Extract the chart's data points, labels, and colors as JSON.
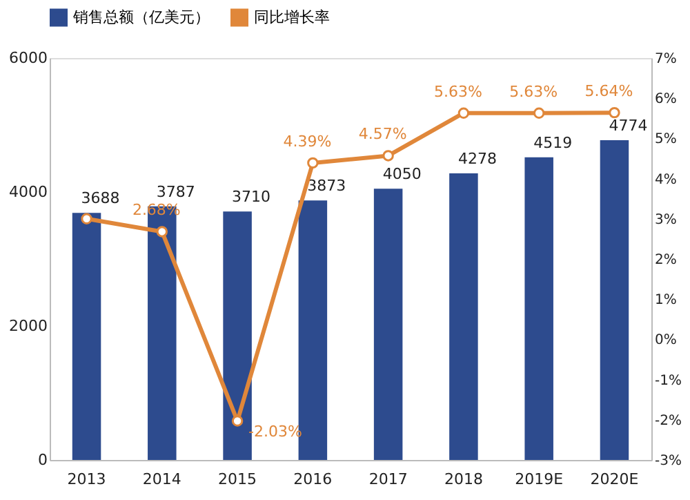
{
  "chart_data": {
    "type": "bar",
    "categories": [
      "2013",
      "2014",
      "2015",
      "2016",
      "2017",
      "2018",
      "2019E",
      "2020E"
    ],
    "series": [
      {
        "name": "销售总额（亿美元）",
        "type": "bar",
        "color": "#2d4b8e",
        "values": [
          3688,
          3787,
          3710,
          3873,
          4050,
          4278,
          4519,
          4774
        ],
        "value_labels": [
          "3688",
          "3787",
          "3710",
          "3873",
          "4050",
          "4278",
          "4519",
          "4774"
        ]
      },
      {
        "name": "同比增长率",
        "type": "line",
        "axis": "y2",
        "color": "#e0873a",
        "values": [
          3.0,
          2.68,
          -2.03,
          4.39,
          4.57,
          5.63,
          5.63,
          5.64
        ],
        "value_labels": [
          null,
          "2.68%",
          "-2.03%",
          "4.39%",
          "4.57%",
          "5.63%",
          "5.63%",
          "5.64%"
        ]
      }
    ],
    "ylim": [
      0,
      6000
    ],
    "yticks": [
      0,
      2000,
      4000,
      6000
    ],
    "y2lim": [
      -3,
      7
    ],
    "y2ticks": [
      {
        "value": -3,
        "label": "-3%"
      },
      {
        "value": -2,
        "label": "-2%"
      },
      {
        "value": -1,
        "label": "-1%"
      },
      {
        "value": 0,
        "label": "0%"
      },
      {
        "value": 1,
        "label": "1%"
      },
      {
        "value": 2,
        "label": "2%"
      },
      {
        "value": 3,
        "label": "3%"
      },
      {
        "value": 4,
        "label": "4%"
      },
      {
        "value": 5,
        "label": "5%"
      },
      {
        "value": 6,
        "label": "6%"
      },
      {
        "value": 7,
        "label": "7%"
      }
    ],
    "legend": "top",
    "grid": false,
    "marker": "circle"
  }
}
